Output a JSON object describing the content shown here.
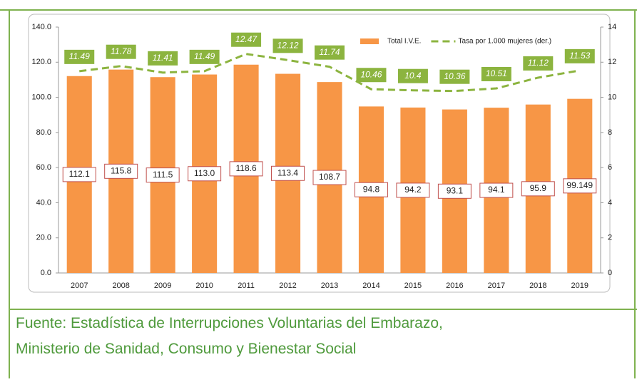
{
  "chart_data": {
    "type": "bar",
    "categories": [
      "2007",
      "2008",
      "2009",
      "2010",
      "2011",
      "2012",
      "2013",
      "2014",
      "2015",
      "2016",
      "2017",
      "2018",
      "2019"
    ],
    "series": [
      {
        "name": "Total I.V.E.",
        "color": "#f79646",
        "values": [
          112.1,
          115.8,
          111.5,
          113.0,
          118.6,
          113.4,
          108.7,
          94.8,
          94.2,
          93.1,
          94.1,
          95.9,
          99.149
        ],
        "value_labels": [
          "112.1",
          "115.8",
          "111.5",
          "113.0",
          "118.6",
          "113.4",
          "108.7",
          "94.8",
          "94.2",
          "93.1",
          "94.1",
          "95.9",
          "99.149"
        ]
      },
      {
        "name": "Tasa por 1.000 mujeres (der.)",
        "type": "line",
        "axis": "y2",
        "color": "#8cb43f",
        "values": [
          11.49,
          11.78,
          11.41,
          11.49,
          12.47,
          12.12,
          11.74,
          10.46,
          10.4,
          10.36,
          10.51,
          11.12,
          11.53
        ]
      }
    ],
    "ylim": [
      0,
      140
    ],
    "yticks": [
      {
        "value": 0,
        "label": "0.0"
      },
      {
        "value": 20,
        "label": "20.0"
      },
      {
        "value": 40,
        "label": "40.0"
      },
      {
        "value": 60,
        "label": "60.0"
      },
      {
        "value": 80,
        "label": "80.0"
      },
      {
        "value": 100,
        "label": "100.0"
      },
      {
        "value": 120,
        "label": "120.0"
      },
      {
        "value": 140,
        "label": "140.0"
      }
    ],
    "y2lim": [
      0,
      14
    ],
    "y2ticks": [
      0,
      2,
      4,
      6,
      8,
      10,
      12,
      14
    ],
    "legend": "top-right"
  },
  "caption": [
    "Fuente: Estadística de Interrupciones Voluntarias del Embarazo,",
    "Ministerio de Sanidad, Consumo y Bienestar Social"
  ]
}
